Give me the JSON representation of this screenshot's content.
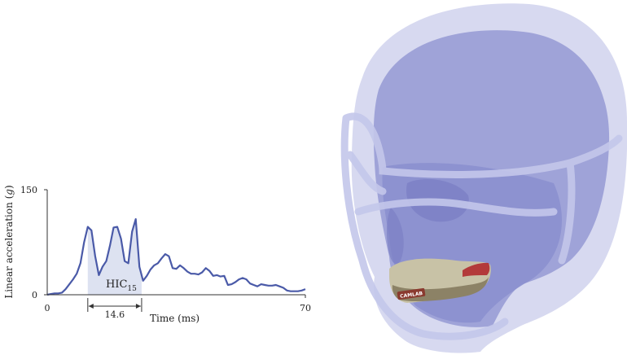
{
  "chart_data": {
    "type": "line",
    "x": [
      0,
      1,
      2,
      3,
      4,
      5,
      6,
      7,
      8,
      9,
      10,
      11,
      12,
      13,
      14,
      15,
      16,
      17,
      18,
      19,
      20,
      21,
      22,
      23,
      24,
      25,
      26,
      27,
      28,
      29,
      30,
      31,
      32,
      33,
      34,
      35,
      36,
      37,
      38,
      39,
      40,
      41,
      42,
      43,
      44,
      45,
      46,
      47,
      48,
      49,
      50,
      51,
      52,
      53,
      54,
      55,
      56,
      57,
      58,
      59,
      60,
      61,
      62,
      63,
      64,
      65,
      66,
      67,
      68,
      69,
      70
    ],
    "y": [
      0,
      1,
      2,
      2,
      3,
      8,
      15,
      22,
      30,
      45,
      75,
      97,
      92,
      55,
      28,
      40,
      48,
      70,
      96,
      97,
      80,
      48,
      45,
      90,
      108,
      40,
      20,
      27,
      36,
      42,
      45,
      52,
      58,
      55,
      38,
      37,
      42,
      38,
      33,
      30,
      30,
      29,
      32,
      38,
      34,
      27,
      28,
      26,
      27,
      14,
      15,
      18,
      22,
      24,
      22,
      16,
      14,
      12,
      15,
      14,
      13,
      13,
      14,
      12,
      10,
      6,
      5,
      5,
      5,
      6,
      8
    ],
    "xlim": [
      0,
      70
    ],
    "ylim": [
      0,
      150
    ],
    "xticks": [
      "0",
      "70"
    ],
    "yticks": [
      "0",
      "150"
    ],
    "xlabel": "Time (ms)",
    "ylabel_prefix": "Linear acceleration (",
    "ylabel_unit": "g",
    "ylabel_suffix": ")",
    "shaded_interval": [
      11,
      25.6
    ],
    "annotation_label": "HIC",
    "annotation_subscript": "15",
    "interval_label": "14.6",
    "line_color": "#4a5aa8",
    "shade_color": "#dde2f1"
  },
  "illustration": {
    "mouthguard_label": "CAMLAB",
    "head_color": "#9fa3d8",
    "face_color": "#8a8fcf",
    "facemask_color": "#c3c6ea"
  }
}
